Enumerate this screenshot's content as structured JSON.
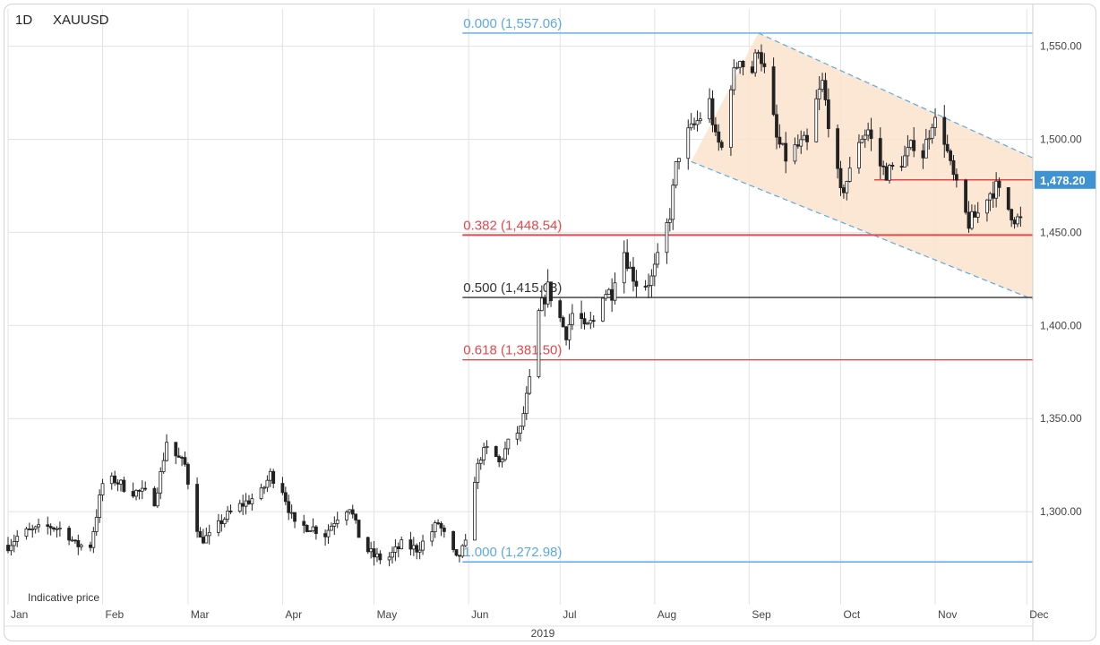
{
  "header": {
    "timeframe": "1D",
    "symbol": "XAUUSD"
  },
  "footer_note": "Indicative price",
  "colors": {
    "fib_zero_one": "#5aa9e6",
    "fib_red": "#e8474a",
    "fib_mid": "#333333",
    "channel_fill": "#fbe3cc",
    "channel_border": "#5aa9e6",
    "resistance": "#e8474a",
    "price_tag": "#3f93d3",
    "candle": "#222222",
    "grid": "#e2e2e2"
  },
  "chart_data": {
    "type": "candlestick",
    "title": "",
    "y_axis": {
      "min": 1250,
      "max": 1570,
      "ticks": [
        1300,
        1350,
        1400,
        1450,
        1500,
        1550
      ],
      "tick_labels": [
        "1,300.00",
        "1,350.00",
        "1,400.00",
        "1,450.00",
        "1,500.00",
        "1,550.00"
      ],
      "side": "right"
    },
    "x_axis": {
      "start": "2019-01-01",
      "end": "2019-12-03",
      "month_labels": [
        {
          "date": "2019-01-01",
          "label": "Jan"
        },
        {
          "date": "2019-02-01",
          "label": "Feb"
        },
        {
          "date": "2019-03-01",
          "label": "Mar"
        },
        {
          "date": "2019-04-01",
          "label": "Apr"
        },
        {
          "date": "2019-05-01",
          "label": "May"
        },
        {
          "date": "2019-06-01",
          "label": "Jun"
        },
        {
          "date": "2019-07-01",
          "label": "Jul"
        },
        {
          "date": "2019-08-01",
          "label": "Aug"
        },
        {
          "date": "2019-09-01",
          "label": "Sep"
        },
        {
          "date": "2019-10-01",
          "label": "Oct"
        },
        {
          "date": "2019-11-01",
          "label": "Nov"
        },
        {
          "date": "2019-12-01",
          "label": "Dec"
        }
      ],
      "year_label": "2019"
    },
    "grid": true,
    "last_price": {
      "value": 1478.2,
      "label": "1,478.20"
    },
    "fibonacci": {
      "start_date": "2019-05-30",
      "levels": [
        {
          "ratio": "0.000",
          "price": 1557.06,
          "label": "0.000 (1,557.06)",
          "color_key": "fib_zero_one"
        },
        {
          "ratio": "0.382",
          "price": 1448.54,
          "label": "0.382 (1,448.54)",
          "color_key": "fib_red"
        },
        {
          "ratio": "0.500",
          "price": 1415.03,
          "label": "0.500 (1,415.03)",
          "color_key": "fib_mid"
        },
        {
          "ratio": "0.618",
          "price": 1381.5,
          "label": "0.618 (1,381.50)",
          "color_key": "fib_red"
        },
        {
          "ratio": "1.000",
          "price": 1272.98,
          "label": "1.000 (1,272.98)",
          "color_key": "fib_zero_one"
        }
      ]
    },
    "channel": {
      "upper": [
        {
          "date": "2019-09-04",
          "price": 1557.06
        },
        {
          "date": "2019-12-03",
          "price": 1490.0
        }
      ],
      "lower": [
        {
          "date": "2019-08-13",
          "price": 1488.0
        },
        {
          "date": "2019-12-03",
          "price": 1414.0
        }
      ]
    },
    "resistance_line": {
      "start": "2019-10-12",
      "end": "2019-12-03",
      "price": 1478.2
    },
    "price_path": [
      [
        "2019-01-01",
        1282
      ],
      [
        "2019-01-05",
        1288
      ],
      [
        "2019-01-10",
        1290
      ],
      [
        "2019-01-15",
        1292
      ],
      [
        "2019-01-20",
        1290
      ],
      [
        "2019-01-23",
        1282
      ],
      [
        "2019-01-28",
        1282
      ],
      [
        "2019-02-01",
        1315
      ],
      [
        "2019-02-05",
        1317
      ],
      [
        "2019-02-10",
        1311
      ],
      [
        "2019-02-15",
        1310
      ],
      [
        "2019-02-18",
        1306
      ],
      [
        "2019-02-20",
        1320
      ],
      [
        "2019-02-22",
        1338
      ],
      [
        "2019-02-25",
        1330
      ],
      [
        "2019-02-28",
        1325
      ],
      [
        "2019-03-03",
        1299
      ],
      [
        "2019-03-05",
        1285
      ],
      [
        "2019-03-09",
        1287
      ],
      [
        "2019-03-12",
        1295
      ],
      [
        "2019-03-16",
        1301
      ],
      [
        "2019-03-20",
        1305
      ],
      [
        "2019-03-25",
        1310
      ],
      [
        "2019-03-28",
        1320
      ],
      [
        "2019-04-01",
        1312
      ],
      [
        "2019-04-05",
        1292
      ],
      [
        "2019-04-10",
        1292
      ],
      [
        "2019-04-15",
        1288
      ],
      [
        "2019-04-20",
        1300
      ],
      [
        "2019-04-23",
        1303
      ],
      [
        "2019-04-27",
        1282
      ],
      [
        "2019-05-01",
        1276
      ],
      [
        "2019-05-05",
        1274
      ],
      [
        "2019-05-10",
        1282
      ],
      [
        "2019-05-15",
        1280
      ],
      [
        "2019-05-18",
        1285
      ],
      [
        "2019-05-22",
        1294
      ],
      [
        "2019-05-25",
        1284
      ],
      [
        "2019-05-28",
        1274
      ],
      [
        "2019-05-31",
        1282
      ],
      [
        "2019-06-03",
        1318
      ],
      [
        "2019-06-05",
        1330
      ],
      [
        "2019-06-08",
        1335
      ],
      [
        "2019-06-11",
        1326
      ],
      [
        "2019-06-15",
        1340
      ],
      [
        "2019-06-18",
        1344
      ],
      [
        "2019-06-21",
        1370
      ],
      [
        "2019-06-24",
        1406
      ],
      [
        "2019-06-27",
        1420
      ],
      [
        "2019-06-30",
        1408
      ],
      [
        "2019-07-03",
        1395
      ],
      [
        "2019-07-06",
        1412
      ],
      [
        "2019-07-09",
        1398
      ],
      [
        "2019-07-12",
        1402
      ],
      [
        "2019-07-15",
        1418
      ],
      [
        "2019-07-18",
        1418
      ],
      [
        "2019-07-21",
        1445
      ],
      [
        "2019-07-24",
        1430
      ],
      [
        "2019-07-27",
        1420
      ],
      [
        "2019-07-31",
        1425
      ],
      [
        "2019-08-03",
        1440
      ],
      [
        "2019-08-06",
        1460
      ],
      [
        "2019-08-08",
        1485
      ],
      [
        "2019-08-10",
        1500
      ],
      [
        "2019-08-13",
        1505
      ],
      [
        "2019-08-16",
        1512
      ],
      [
        "2019-08-19",
        1520
      ],
      [
        "2019-08-21",
        1500
      ],
      [
        "2019-08-23",
        1495
      ],
      [
        "2019-08-26",
        1530
      ],
      [
        "2019-08-29",
        1545
      ],
      [
        "2019-09-01",
        1530
      ],
      [
        "2019-09-04",
        1550
      ],
      [
        "2019-09-07",
        1530
      ],
      [
        "2019-09-10",
        1500
      ],
      [
        "2019-09-13",
        1490
      ],
      [
        "2019-09-16",
        1495
      ],
      [
        "2019-09-19",
        1498
      ],
      [
        "2019-09-21",
        1495
      ],
      [
        "2019-09-23",
        1520
      ],
      [
        "2019-09-25",
        1530
      ],
      [
        "2019-09-28",
        1500
      ],
      [
        "2019-10-01",
        1470
      ],
      [
        "2019-10-04",
        1482
      ],
      [
        "2019-10-07",
        1500
      ],
      [
        "2019-10-10",
        1505
      ],
      [
        "2019-10-13",
        1488
      ],
      [
        "2019-10-16",
        1482
      ],
      [
        "2019-10-19",
        1485
      ],
      [
        "2019-10-22",
        1490
      ],
      [
        "2019-10-25",
        1498
      ],
      [
        "2019-10-28",
        1492
      ],
      [
        "2019-10-31",
        1510
      ],
      [
        "2019-11-03",
        1508
      ],
      [
        "2019-11-06",
        1485
      ],
      [
        "2019-11-09",
        1468
      ],
      [
        "2019-11-12",
        1455
      ],
      [
        "2019-11-15",
        1460
      ],
      [
        "2019-11-18",
        1470
      ],
      [
        "2019-11-21",
        1474
      ],
      [
        "2019-11-24",
        1465
      ],
      [
        "2019-11-27",
        1458
      ],
      [
        "2019-11-29",
        1456
      ]
    ]
  }
}
